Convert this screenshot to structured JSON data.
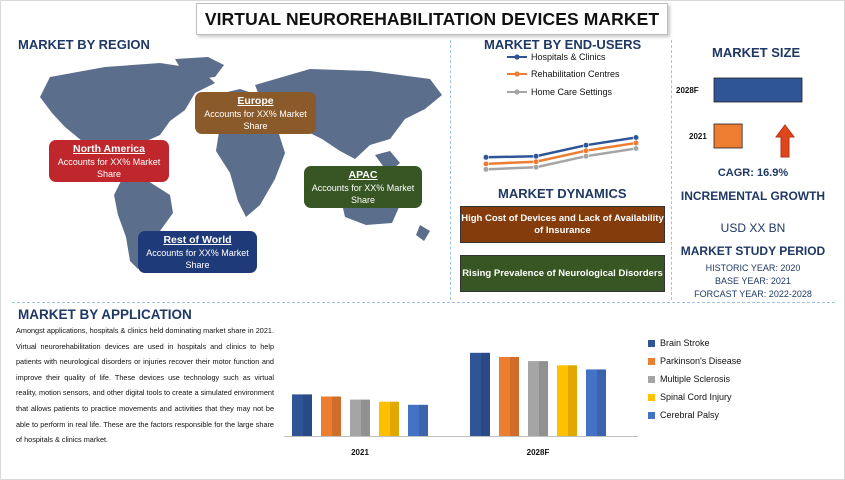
{
  "title": "VIRTUAL NEUROREHABILITATION DEVICES MARKET",
  "region": {
    "heading": "MARKET BY REGION",
    "cards": [
      {
        "name": "North America",
        "text": "Accounts for XX% Market Share",
        "color": "#c0272d"
      },
      {
        "name": "Europe",
        "text": "Accounts for XX% Market Share",
        "color": "#8b5a2b"
      },
      {
        "name": "APAC",
        "text": "Accounts for XX% Market Share",
        "color": "#375623"
      },
      {
        "name": "Rest of World",
        "text": "Accounts for XX% Market Share",
        "color": "#1f3a78"
      }
    ]
  },
  "end_users": {
    "heading": "MARKET BY END-USERS",
    "legend": [
      "Hospitals & Clinics",
      "Rehabilitation Centres",
      "Home Care Settings"
    ],
    "colors": [
      "#2f5597",
      "#ed7d31",
      "#a5a5a5"
    ]
  },
  "dynamics": {
    "heading": "MARKET DYNAMICS",
    "items": [
      {
        "text": "High Cost of Devices and Lack of Availability of Insurance",
        "color": "#843c0c"
      },
      {
        "text": "Rising Prevalence of Neurological Disorders",
        "color": "#375623"
      }
    ]
  },
  "market_size": {
    "heading": "MARKET SIZE",
    "bars": [
      {
        "label": "2028F",
        "color": "#2f5597"
      },
      {
        "label": "2021",
        "color": "#ed7d31"
      }
    ],
    "cagr": "CAGR:  16.9%",
    "incremental_heading": "INCREMENTAL GROWTH",
    "incremental_value": "USD XX BN",
    "period_heading": "MARKET STUDY PERIOD",
    "historic": "HISTORIC YEAR: 2020",
    "base": "BASE YEAR:  2021",
    "forecast": "FORCAST YEAR:  2022-2028"
  },
  "application": {
    "heading": "MARKET BY APPLICATION",
    "text": "Amongst applications, hospitals & clinics held dominating market share in 2021. Virtual neurorehabilitation devices are used in hospitals and clinics to help patients with neurological disorders or injuries recover their motor function and improve their quality of life. These devices use technology such as virtual reality, motion sensors, and other digital tools to create a simulated environment that allows patients to practice movements and activities that they may not be able to perform in real life. These are the factors responsible for the large share of hospitals & clinics market."
  },
  "chart_data": [
    {
      "type": "line",
      "legend": [
        "Hospitals & Clinics",
        "Rehabilitation Centres",
        "Home Care Settings"
      ],
      "series": [
        {
          "name": "Hospitals & Clinics",
          "values": [
            5.2,
            5.3,
            6.3,
            7.0
          ],
          "color": "#2f5597"
        },
        {
          "name": "Rehabilitation Centres",
          "values": [
            4.6,
            4.8,
            5.8,
            6.5
          ],
          "color": "#ed7d31"
        },
        {
          "name": "Home Care Settings",
          "values": [
            4.1,
            4.3,
            5.3,
            6.0
          ],
          "color": "#a5a5a5"
        }
      ],
      "grid": false
    },
    {
      "type": "bar",
      "orientation": "horizontal",
      "categories": [
        "2028F",
        "2021"
      ],
      "values": [
        100,
        32
      ],
      "colors": [
        "#2f5597",
        "#ed7d31"
      ]
    },
    {
      "type": "bar",
      "categories": [
        "2021",
        "2028F"
      ],
      "series": [
        {
          "name": "Brain Stroke",
          "values": [
            40,
            80
          ],
          "color": "#2f5597"
        },
        {
          "name": "Parkinson's Disease",
          "values": [
            38,
            76
          ],
          "color": "#ed7d31"
        },
        {
          "name": "Multiple Sclerosis",
          "values": [
            35,
            72
          ],
          "color": "#a5a5a5"
        },
        {
          "name": "Spinal Cord Injury",
          "values": [
            33,
            68
          ],
          "color": "#ffc000"
        },
        {
          "name": "Cerebral Palsy",
          "values": [
            30,
            64
          ],
          "color": "#4472c4"
        }
      ],
      "legend_position": "right",
      "grid": false
    }
  ]
}
